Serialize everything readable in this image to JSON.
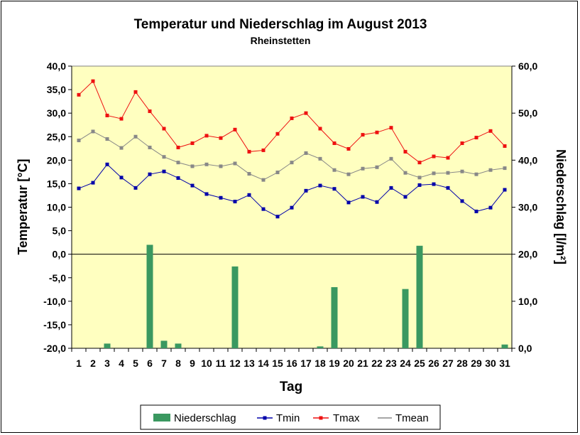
{
  "chart_data": {
    "type": "bar+line",
    "title": "Temperatur und Niederschlag im August 2013",
    "subtitle": "Rheinstetten",
    "xlabel": "Tag",
    "ylabel_left": "Temperatur [°C]",
    "ylabel_right": "Niederschlag [l/m²]",
    "ylim_left": [
      -20,
      40
    ],
    "ylim_right": [
      0,
      60
    ],
    "yticks_left": [
      "40,0",
      "35,0",
      "30,0",
      "25,0",
      "20,0",
      "15,0",
      "10,0",
      "5,0",
      "0,0",
      "-5,0",
      "-10,0",
      "-15,0",
      "-20,0"
    ],
    "yticks_right": [
      "60,0",
      "50,0",
      "40,0",
      "30,0",
      "20,0",
      "10,0",
      "0,0"
    ],
    "categories": [
      "1",
      "2",
      "3",
      "4",
      "5",
      "6",
      "7",
      "8",
      "9",
      "10",
      "11",
      "12",
      "13",
      "14",
      "15",
      "16",
      "17",
      "18",
      "19",
      "20",
      "21",
      "22",
      "23",
      "24",
      "25",
      "26",
      "27",
      "28",
      "29",
      "30",
      "31"
    ],
    "grid": false,
    "legend_position": "bottom",
    "colors": {
      "plot_background": "#ffffc0",
      "precipitation": "#3a9860",
      "tmin": "#0000aa",
      "tmax": "#ee1111",
      "tmean": "#888888"
    },
    "series": [
      {
        "name": "Niederschlag",
        "type": "bar",
        "axis": "right",
        "values": [
          0,
          0,
          1.0,
          0,
          0,
          22.0,
          1.6,
          1.0,
          0,
          0,
          0,
          17.4,
          0,
          0,
          0,
          0,
          0,
          0.4,
          13.0,
          0,
          0,
          0,
          0,
          12.6,
          21.8,
          0,
          0,
          0,
          0,
          0,
          0.8
        ]
      },
      {
        "name": "Tmin",
        "type": "line",
        "axis": "left",
        "values": [
          14.0,
          15.2,
          19.1,
          16.3,
          14.1,
          17.0,
          17.6,
          16.2,
          14.6,
          12.8,
          12.0,
          11.2,
          12.6,
          9.6,
          8.0,
          9.9,
          13.5,
          14.6,
          13.9,
          11.0,
          12.2,
          11.1,
          14.1,
          12.2,
          14.7,
          14.9,
          14.1,
          11.3,
          9.1,
          9.9,
          13.7
        ]
      },
      {
        "name": "Tmax",
        "type": "line",
        "axis": "left",
        "values": [
          33.9,
          36.8,
          29.5,
          28.8,
          34.5,
          30.4,
          26.7,
          22.7,
          23.6,
          25.2,
          24.7,
          26.5,
          21.8,
          22.1,
          25.6,
          28.9,
          30.0,
          26.7,
          23.6,
          22.4,
          25.4,
          25.9,
          26.9,
          21.8,
          19.5,
          20.8,
          20.5,
          23.6,
          24.8,
          26.2,
          23.0
        ]
      },
      {
        "name": "Tmean",
        "type": "line",
        "axis": "left",
        "values": [
          24.2,
          26.1,
          24.5,
          22.6,
          25.0,
          22.7,
          20.7,
          19.5,
          18.7,
          19.1,
          18.7,
          19.3,
          17.1,
          15.8,
          17.4,
          19.5,
          21.5,
          20.3,
          17.9,
          17.0,
          18.2,
          18.5,
          20.3,
          17.3,
          16.3,
          17.2,
          17.3,
          17.6,
          17.0,
          17.9,
          18.3
        ]
      }
    ]
  }
}
